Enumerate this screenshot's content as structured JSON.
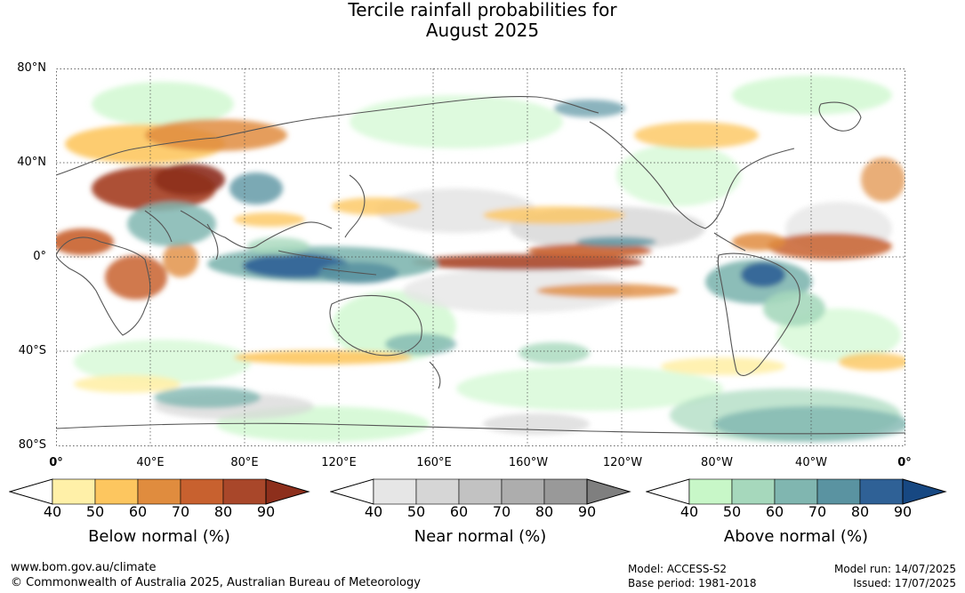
{
  "title": {
    "line1": "Tercile rainfall probabilities for",
    "line2": "August 2025"
  },
  "lat_labels": [
    "80°N",
    "40°N",
    "0°",
    "40°S",
    "80°S"
  ],
  "lon_labels": [
    "0°",
    "40°E",
    "80°E",
    "120°E",
    "160°E",
    "160°W",
    "120°W",
    "80°W",
    "40°W",
    "0°"
  ],
  "colorbars": [
    {
      "label": "Below normal (%)",
      "ticks": [
        "40",
        "50",
        "60",
        "70",
        "80",
        "90"
      ],
      "colors": [
        "#fff0a8",
        "#fdc65f",
        "#e08c3e",
        "#c8612f",
        "#a9472a",
        "#8d2f1c"
      ]
    },
    {
      "label": "Near normal (%)",
      "ticks": [
        "40",
        "50",
        "60",
        "70",
        "80",
        "90"
      ],
      "colors": [
        "#e6e6e6",
        "#d6d6d6",
        "#c2c2c2",
        "#adadad",
        "#999999",
        "#7f7f7f"
      ]
    },
    {
      "label": "Above normal (%)",
      "ticks": [
        "40",
        "50",
        "60",
        "70",
        "80",
        "90"
      ],
      "colors": [
        "#c8f7c8",
        "#a6d8bc",
        "#80b6b0",
        "#5a93a1",
        "#2f6196",
        "#174882"
      ]
    }
  ],
  "footer": {
    "website": "www.bom.gov.au/climate",
    "copyright": "© Commonwealth of Australia 2025, Australian Bureau of Meteorology",
    "model": "Model: ACCESS-S2",
    "base_period": "Base period: 1981-2018",
    "model_run": "Model run: 14/07/2025",
    "issued": "Issued: 17/07/2025"
  }
}
